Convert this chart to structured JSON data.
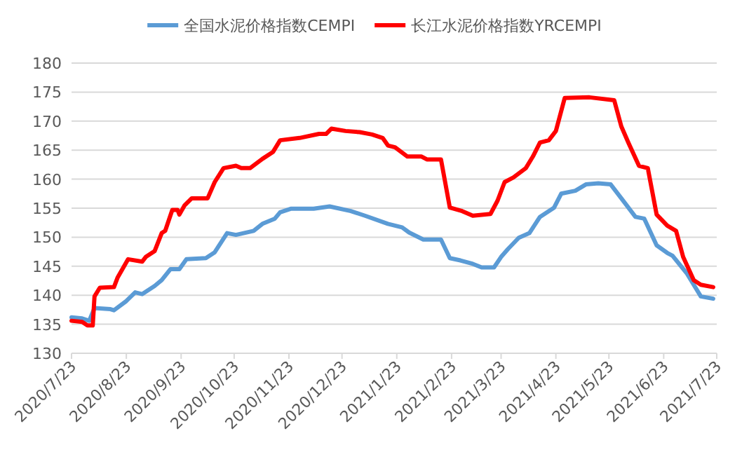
{
  "chart_data": {
    "type": "line",
    "xlim": [
      "2020-07-23",
      "2021-07-23"
    ],
    "xticks": [
      {
        "value": "2020-07-23",
        "label": "2020/7/23"
      },
      {
        "value": "2020-08-23",
        "label": "2020/8/23"
      },
      {
        "value": "2020-09-23",
        "label": "2020/9/23"
      },
      {
        "value": "2020-10-23",
        "label": "2020/10/23"
      },
      {
        "value": "2020-11-23",
        "label": "2020/11/23"
      },
      {
        "value": "2020-12-23",
        "label": "2020/12/23"
      },
      {
        "value": "2021-01-23",
        "label": "2021/1/23"
      },
      {
        "value": "2021-02-23",
        "label": "2021/2/23"
      },
      {
        "value": "2021-03-23",
        "label": "2021/3/23"
      },
      {
        "value": "2021-04-23",
        "label": "2021/4/23"
      },
      {
        "value": "2021-05-23",
        "label": "2021/5/23"
      },
      {
        "value": "2021-06-23",
        "label": "2021/6/23"
      },
      {
        "value": "2021-07-23",
        "label": "2021/7/23"
      }
    ],
    "ylim": [
      130,
      180
    ],
    "yticks": [
      130,
      135,
      140,
      145,
      150,
      155,
      160,
      165,
      170,
      175,
      180
    ],
    "grid": "y",
    "legend": "top",
    "series": [
      {
        "name": "全国水泥价格指数CEMPI",
        "color": "#5b9bd5",
        "x": [
          "2020-07-23",
          "2020-07-29",
          "2020-08-02",
          "2020-08-05",
          "2020-08-14",
          "2020-08-16",
          "2020-08-23",
          "2020-08-28",
          "2020-09-01",
          "2020-09-08",
          "2020-09-12",
          "2020-09-17",
          "2020-09-22",
          "2020-09-26",
          "2020-10-07",
          "2020-10-12",
          "2020-10-19",
          "2020-10-24",
          "2020-11-03",
          "2020-11-08",
          "2020-11-15",
          "2020-11-18",
          "2020-11-24",
          "2020-12-07",
          "2020-12-16",
          "2020-12-28",
          "2021-01-05",
          "2021-01-18",
          "2021-01-26",
          "2021-01-30",
          "2021-02-07",
          "2021-02-17",
          "2021-02-22",
          "2021-02-28",
          "2021-03-07",
          "2021-03-12",
          "2021-03-19",
          "2021-03-23",
          "2021-03-27",
          "2021-04-02",
          "2021-04-08",
          "2021-04-14",
          "2021-04-22",
          "2021-04-26",
          "2021-05-04",
          "2021-05-10",
          "2021-05-17",
          "2021-05-24",
          "2021-05-30",
          "2021-06-07",
          "2021-06-12",
          "2021-06-19",
          "2021-06-25",
          "2021-06-28",
          "2021-07-06",
          "2021-07-14",
          "2021-07-21"
        ],
        "values": [
          136.2,
          136.0,
          135.6,
          137.8,
          137.6,
          137.4,
          139.0,
          140.5,
          140.2,
          141.6,
          142.6,
          144.5,
          144.5,
          146.2,
          146.4,
          147.4,
          150.7,
          150.4,
          151.1,
          152.3,
          153.2,
          154.3,
          154.9,
          154.9,
          155.3,
          154.5,
          153.7,
          152.3,
          151.7,
          150.8,
          149.6,
          149.6,
          146.4,
          146.0,
          145.4,
          144.8,
          144.8,
          146.6,
          148.0,
          149.9,
          150.7,
          153.5,
          155.1,
          157.5,
          158.0,
          159.1,
          159.3,
          159.1,
          156.7,
          153.5,
          153.2,
          148.6,
          147.3,
          146.8,
          143.8,
          139.8,
          139.4
        ]
      },
      {
        "name": "长江水泥价格指数YRCEMPI",
        "color": "#ff0000",
        "x": [
          "2020-07-23",
          "2020-07-29",
          "2020-08-01",
          "2020-08-04",
          "2020-08-05",
          "2020-08-08",
          "2020-08-16",
          "2020-08-18",
          "2020-08-24",
          "2020-09-01",
          "2020-09-03",
          "2020-09-08",
          "2020-09-12",
          "2020-09-14",
          "2020-09-18",
          "2020-09-21",
          "2020-09-22",
          "2020-09-25",
          "2020-09-29",
          "2020-10-08",
          "2020-10-12",
          "2020-10-17",
          "2020-10-24",
          "2020-10-27",
          "2020-11-01",
          "2020-11-08",
          "2020-11-14",
          "2020-11-18",
          "2020-11-29",
          "2020-12-10",
          "2020-12-14",
          "2020-12-17",
          "2020-12-25",
          "2021-01-02",
          "2021-01-09",
          "2021-01-15",
          "2021-01-18",
          "2021-01-22",
          "2021-01-29",
          "2021-02-06",
          "2021-02-09",
          "2021-02-17",
          "2021-02-22",
          "2021-03-01",
          "2021-03-07",
          "2021-03-17",
          "2021-03-21",
          "2021-03-25",
          "2021-03-30",
          "2021-04-06",
          "2021-04-10",
          "2021-04-14",
          "2021-04-19",
          "2021-04-23",
          "2021-04-28",
          "2021-05-12",
          "2021-05-26",
          "2021-05-30",
          "2021-06-03",
          "2021-06-09",
          "2021-06-14",
          "2021-06-19",
          "2021-06-25",
          "2021-06-30",
          "2021-07-04",
          "2021-07-10",
          "2021-07-14",
          "2021-07-21"
        ],
        "values": [
          135.6,
          135.4,
          134.8,
          134.8,
          139.8,
          141.3,
          141.4,
          143.0,
          146.2,
          145.8,
          146.6,
          147.6,
          150.7,
          151.1,
          154.7,
          154.7,
          153.9,
          155.5,
          156.7,
          156.7,
          159.5,
          161.9,
          162.3,
          161.9,
          161.9,
          163.5,
          164.7,
          166.7,
          167.1,
          167.8,
          167.8,
          168.7,
          168.3,
          168.1,
          167.7,
          167.1,
          165.8,
          165.5,
          163.9,
          163.9,
          163.4,
          163.4,
          155.1,
          154.5,
          153.7,
          154.0,
          156.3,
          159.5,
          160.3,
          161.9,
          163.9,
          166.3,
          166.7,
          168.3,
          174.0,
          174.1,
          173.6,
          169.1,
          166.3,
          162.3,
          161.9,
          153.9,
          152.0,
          151.1,
          146.6,
          142.6,
          141.8,
          141.4
        ]
      }
    ]
  }
}
